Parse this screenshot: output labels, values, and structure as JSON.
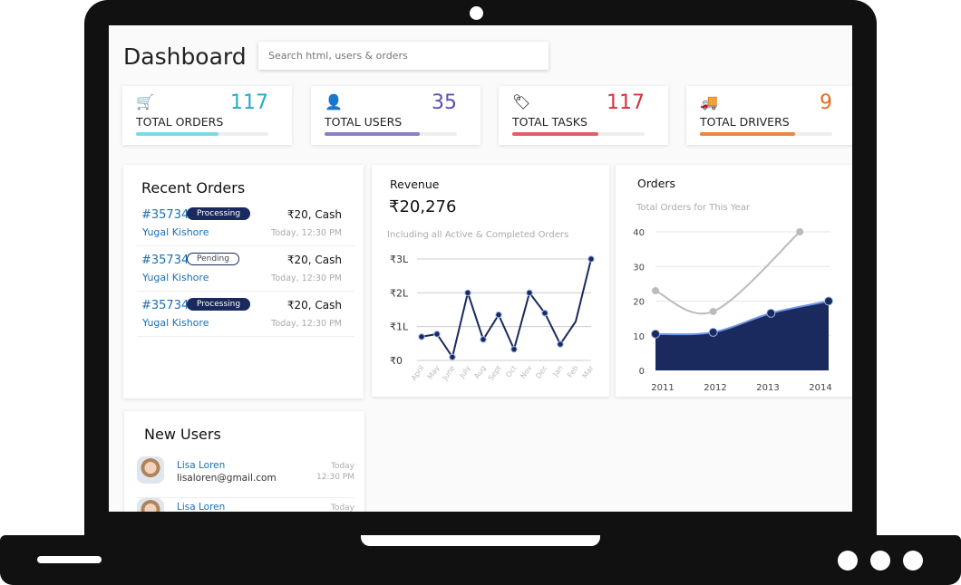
{
  "header": {
    "title": "Dashboard",
    "search_placeholder": "Search html, users & orders"
  },
  "stats": [
    {
      "icon": "cart-icon",
      "glyph": "🛒",
      "value": "117",
      "label": "TOTAL ORDERS",
      "color": "#2aa9c4",
      "bar_color": "#7adbe6",
      "progress": 0.62
    },
    {
      "icon": "user-icon",
      "glyph": "👤",
      "value": "35",
      "label": "TOTAL USERS",
      "color": "#5b4fb0",
      "bar_color": "#8b7fc4",
      "progress": 0.72
    },
    {
      "icon": "tag-icon",
      "glyph": "🏷",
      "value": "117",
      "label": "TOTAL TASKS",
      "color": "#d6323e",
      "bar_color": "#e35d68",
      "progress": 0.65
    },
    {
      "icon": "truck-icon",
      "glyph": "🚚",
      "value": "9",
      "label": "TOTAL DRIVERS",
      "color": "#e86a1c",
      "bar_color": "#ea8640",
      "progress": 0.72
    }
  ],
  "recent_orders": {
    "title": "Recent Orders",
    "items": [
      {
        "id": "#35734",
        "status": "Processing",
        "amount": "₹20, Cash",
        "customer": "Yugal Kishore",
        "time": "Today, 12:30 PM"
      },
      {
        "id": "#35734",
        "status": "Pending",
        "amount": "₹20, Cash",
        "customer": "Yugal Kishore",
        "time": "Today, 12:30 PM"
      },
      {
        "id": "#35734",
        "status": "Processing",
        "amount": "₹20, Cash",
        "customer": "Yugal Kishore",
        "time": "Today, 12:30 PM"
      }
    ]
  },
  "new_users": {
    "title": "New Users",
    "items": [
      {
        "name": "Lisa Loren",
        "email": "lisaloren@gmail.com",
        "day": "Today",
        "time": "12:30 PM"
      },
      {
        "name": "Lisa Loren",
        "email": "",
        "day": "Today",
        "time": ""
      }
    ]
  },
  "revenue": {
    "title": "Revenue",
    "total": "₹20,276",
    "subtitle": "Including all Active & Completed Orders"
  },
  "orders": {
    "title": "Orders",
    "subtitle": "Total Orders for This Year"
  },
  "chart_data": [
    {
      "type": "line",
      "categories": [
        "April",
        "May",
        "June",
        "July",
        "Aug",
        "Sept",
        "Oct",
        "Nov",
        "Dec",
        "Jan",
        "Feb",
        "Mar"
      ],
      "values": [
        0.7,
        0.78,
        0.1,
        2.0,
        0.62,
        1.35,
        0.33,
        2.0,
        1.4,
        0.48,
        1.15,
        3.0
      ],
      "unit": "L",
      "yticks": [
        "₹0",
        "₹1L",
        "₹2L",
        "₹3L"
      ],
      "ylim": [
        0,
        3
      ],
      "color": "#1b2a5e",
      "grid": true
    },
    {
      "type": "area",
      "categories": [
        "2011",
        "2012",
        "2013",
        "2014"
      ],
      "ylim": [
        0,
        40
      ],
      "yticks": [
        "0",
        "10",
        "20",
        "30",
        "40"
      ],
      "grid": true,
      "series": [
        {
          "type": "line",
          "x": [
            2011,
            2012,
            2013.5
          ],
          "values": [
            23,
            17,
            40
          ],
          "color": "#bbbbbb"
        },
        {
          "type": "area",
          "x": [
            2011,
            2012,
            2013,
            2014
          ],
          "values": [
            10.5,
            11,
            16.5,
            20
          ],
          "color": "#1b2a5e"
        }
      ]
    }
  ]
}
